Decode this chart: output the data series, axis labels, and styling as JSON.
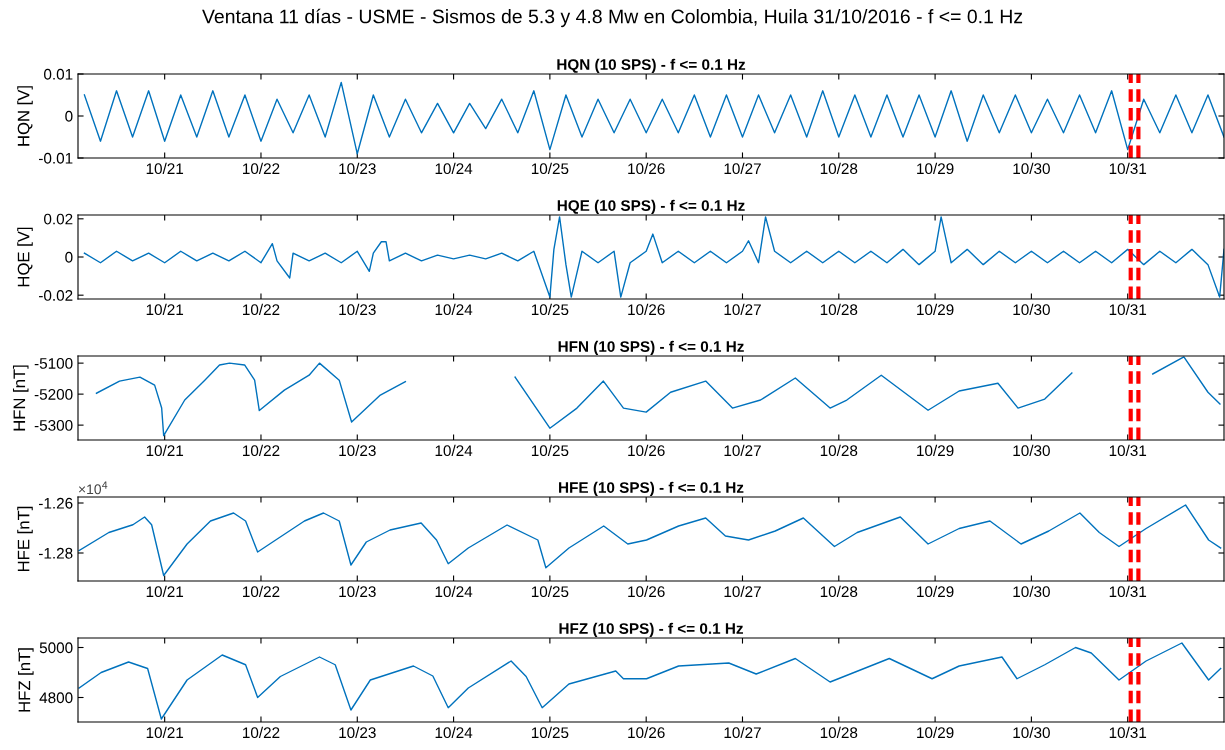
{
  "chart_data": [
    {
      "type": "line",
      "title": "HQN (10 SPS) - f <= 0.1 Hz",
      "ylabel": "HQN [V]",
      "annotations": [
        "Ventana 11 días - USME - Sismos de 5.3 y 4.8 Mw en Colombia, Huila 31/10/2016 - f <= 0.1 Hz"
      ],
      "xlim": [
        "2016-10-20T02:24",
        "2016-11-01T00:00"
      ],
      "ylim": [
        -0.01,
        0.01
      ],
      "yticks": [
        0.01,
        0,
        -0.01
      ],
      "xticks": [
        {
          "value": "2016-10-21",
          "label": "10/21"
        },
        {
          "value": "2016-10-22",
          "label": "10/22"
        },
        {
          "value": "2016-10-23",
          "label": "10/23"
        },
        {
          "value": "2016-10-24",
          "label": "10/24"
        },
        {
          "value": "2016-10-25",
          "label": "10/25"
        },
        {
          "value": "2016-10-26",
          "label": "10/26"
        },
        {
          "value": "2016-10-27",
          "label": "10/27"
        },
        {
          "value": "2016-10-28",
          "label": "10/28"
        },
        {
          "value": "2016-10-29",
          "label": "10/29"
        },
        {
          "value": "2016-10-30",
          "label": "10/30"
        },
        {
          "value": "2016-10-31",
          "label": "10/31"
        }
      ],
      "ref_lines": [
        {
          "axis": "x",
          "value": "2016-10-31T00:45",
          "color": "#ff0000",
          "line_style": "dashed"
        },
        {
          "axis": "x",
          "value": "2016-10-31T02:40",
          "color": "#ff0000",
          "line_style": "dashed"
        }
      ],
      "grid": false,
      "legend": false,
      "series": [
        {
          "color": "#0072bd",
          "x": [
            "2016-10-20T04:00",
            "2016-10-20T08:00",
            "2016-10-20T12:00",
            "2016-10-20T16:00",
            "2016-10-20T20:00",
            "2016-10-21T00:00",
            "2016-10-21T04:00",
            "2016-10-21T08:00",
            "2016-10-21T12:00",
            "2016-10-21T16:00",
            "2016-10-21T20:00",
            "2016-10-22T00:00",
            "2016-10-22T04:00",
            "2016-10-22T08:00",
            "2016-10-22T12:00",
            "2016-10-22T16:00",
            "2016-10-22T20:00",
            "2016-10-23T00:00",
            "2016-10-23T04:00",
            "2016-10-23T08:00",
            "2016-10-23T12:00",
            "2016-10-23T16:00",
            "2016-10-23T20:00",
            "2016-10-24T00:00",
            "2016-10-24T04:00",
            "2016-10-24T08:00",
            "2016-10-24T12:00",
            "2016-10-24T16:00",
            "2016-10-24T20:00",
            "2016-10-25T00:00",
            "2016-10-25T04:00",
            "2016-10-25T08:00",
            "2016-10-25T12:00",
            "2016-10-25T16:00",
            "2016-10-25T20:00",
            "2016-10-26T00:00",
            "2016-10-26T04:00",
            "2016-10-26T08:00",
            "2016-10-26T12:00",
            "2016-10-26T16:00",
            "2016-10-26T20:00",
            "2016-10-27T00:00",
            "2016-10-27T04:00",
            "2016-10-27T08:00",
            "2016-10-27T12:00",
            "2016-10-27T16:00",
            "2016-10-27T20:00",
            "2016-10-28T00:00",
            "2016-10-28T04:00",
            "2016-10-28T08:00",
            "2016-10-28T12:00",
            "2016-10-28T16:00",
            "2016-10-28T20:00",
            "2016-10-29T00:00",
            "2016-10-29T04:00",
            "2016-10-29T08:00",
            "2016-10-29T12:00",
            "2016-10-29T16:00",
            "2016-10-29T20:00",
            "2016-10-30T00:00",
            "2016-10-30T04:00",
            "2016-10-30T08:00",
            "2016-10-30T12:00",
            "2016-10-30T16:00",
            "2016-10-30T20:00",
            "2016-10-31T00:00",
            "2016-10-31T04:00",
            "2016-10-31T08:00",
            "2016-10-31T12:00",
            "2016-10-31T16:00",
            "2016-10-31T20:00",
            "2016-11-01T00:00"
          ],
          "values": [
            0.005,
            -0.006,
            0.006,
            -0.005,
            0.006,
            -0.006,
            0.005,
            -0.005,
            0.006,
            -0.005,
            0.005,
            -0.006,
            0.004,
            -0.004,
            0.005,
            -0.005,
            0.008,
            -0.009,
            0.005,
            -0.005,
            0.004,
            -0.004,
            0.003,
            -0.004,
            0.003,
            -0.003,
            0.004,
            -0.004,
            0.006,
            -0.008,
            0.005,
            -0.005,
            0.004,
            -0.004,
            0.004,
            -0.004,
            0.004,
            -0.004,
            0.005,
            -0.005,
            0.005,
            -0.005,
            0.005,
            -0.004,
            0.005,
            -0.005,
            0.006,
            -0.005,
            0.005,
            -0.005,
            0.005,
            -0.005,
            0.005,
            -0.005,
            0.006,
            -0.006,
            0.005,
            -0.004,
            0.005,
            -0.004,
            0.004,
            -0.004,
            0.005,
            -0.004,
            0.006,
            -0.008,
            0.004,
            -0.004,
            0.005,
            -0.004,
            0.005,
            -0.005
          ]
        }
      ]
    },
    {
      "type": "line",
      "title": "HQE (10 SPS) - f <= 0.1 Hz",
      "ylabel": "HQE [V]",
      "xlim": [
        "2016-10-20T02:24",
        "2016-11-01T00:00"
      ],
      "ylim": [
        -0.022,
        0.022
      ],
      "yticks": [
        0.02,
        0,
        -0.02
      ],
      "xticks": [
        {
          "value": "2016-10-21",
          "label": "10/21"
        },
        {
          "value": "2016-10-22",
          "label": "10/22"
        },
        {
          "value": "2016-10-23",
          "label": "10/23"
        },
        {
          "value": "2016-10-24",
          "label": "10/24"
        },
        {
          "value": "2016-10-25",
          "label": "10/25"
        },
        {
          "value": "2016-10-26",
          "label": "10/26"
        },
        {
          "value": "2016-10-27",
          "label": "10/27"
        },
        {
          "value": "2016-10-28",
          "label": "10/28"
        },
        {
          "value": "2016-10-29",
          "label": "10/29"
        },
        {
          "value": "2016-10-30",
          "label": "10/30"
        },
        {
          "value": "2016-10-31",
          "label": "10/31"
        }
      ],
      "ref_lines": [
        {
          "axis": "x",
          "value": "2016-10-31T00:45",
          "color": "#ff0000",
          "line_style": "dashed"
        },
        {
          "axis": "x",
          "value": "2016-10-31T02:40",
          "color": "#ff0000",
          "line_style": "dashed"
        }
      ],
      "grid": false,
      "legend": false,
      "series": [
        {
          "color": "#0072bd",
          "x": [
            "2016-10-20T04:00",
            "2016-10-20T08:00",
            "2016-10-20T12:00",
            "2016-10-20T16:00",
            "2016-10-20T20:00",
            "2016-10-21T00:00",
            "2016-10-21T04:00",
            "2016-10-21T08:00",
            "2016-10-21T12:00",
            "2016-10-21T16:00",
            "2016-10-21T20:00",
            "2016-10-22T00:00",
            "2016-10-22T02:50",
            "2016-10-22T04:00",
            "2016-10-22T07:10",
            "2016-10-22T08:00",
            "2016-10-22T12:00",
            "2016-10-22T16:00",
            "2016-10-22T20:00",
            "2016-10-23T00:00",
            "2016-10-23T03:00",
            "2016-10-23T04:00",
            "2016-10-23T06:00",
            "2016-10-23T07:10",
            "2016-10-23T08:00",
            "2016-10-23T12:00",
            "2016-10-23T16:00",
            "2016-10-23T20:00",
            "2016-10-24T00:00",
            "2016-10-24T04:00",
            "2016-10-24T08:00",
            "2016-10-24T12:00",
            "2016-10-24T16:00",
            "2016-10-24T20:00",
            "2016-10-25T00:00",
            "2016-10-25T01:00",
            "2016-10-25T02:25",
            "2016-10-25T04:00",
            "2016-10-25T05:20",
            "2016-10-25T08:00",
            "2016-10-25T12:00",
            "2016-10-25T16:00",
            "2016-10-25T17:40",
            "2016-10-25T20:00",
            "2016-10-26T00:00",
            "2016-10-26T01:40",
            "2016-10-26T04:00",
            "2016-10-26T08:00",
            "2016-10-26T12:00",
            "2016-10-26T16:00",
            "2016-10-26T20:00",
            "2016-10-27T00:00",
            "2016-10-27T01:30",
            "2016-10-27T04:00",
            "2016-10-27T05:45",
            "2016-10-27T08:00",
            "2016-10-27T12:00",
            "2016-10-27T16:00",
            "2016-10-27T20:00",
            "2016-10-28T00:00",
            "2016-10-28T04:00",
            "2016-10-28T08:00",
            "2016-10-28T12:00",
            "2016-10-28T16:00",
            "2016-10-28T20:00",
            "2016-10-29T00:00",
            "2016-10-29T01:30",
            "2016-10-29T04:00",
            "2016-10-29T08:00",
            "2016-10-29T12:00",
            "2016-10-29T16:00",
            "2016-10-29T20:00",
            "2016-10-30T00:00",
            "2016-10-30T04:00",
            "2016-10-30T08:00",
            "2016-10-30T12:00",
            "2016-10-30T16:00",
            "2016-10-30T20:00",
            "2016-10-31T00:00",
            "2016-10-31T04:00",
            "2016-10-31T08:00",
            "2016-10-31T12:00",
            "2016-10-31T16:00",
            "2016-10-31T20:00",
            "2016-10-31T22:55",
            "2016-11-01T00:00"
          ],
          "values": [
            0.002,
            -0.003,
            0.003,
            -0.002,
            0.002,
            -0.003,
            0.003,
            -0.002,
            0.002,
            -0.002,
            0.003,
            -0.003,
            0.007,
            -0.002,
            -0.011,
            0.002,
            -0.002,
            0.002,
            -0.003,
            0.003,
            -0.0075,
            0.002,
            0.008,
            0.008,
            -0.002,
            0.002,
            -0.002,
            0.001,
            -0.001,
            0.001,
            -0.001,
            0.002,
            -0.002,
            0.003,
            -0.021,
            0.004,
            0.021,
            -0.004,
            -0.021,
            0.003,
            -0.003,
            0.003,
            -0.021,
            -0.003,
            0.003,
            0.012,
            -0.003,
            0.003,
            -0.003,
            0.003,
            -0.003,
            0.003,
            0.0085,
            -0.003,
            0.021,
            0.003,
            -0.003,
            0.003,
            -0.003,
            0.003,
            -0.003,
            0.003,
            -0.003,
            0.004,
            -0.004,
            0.003,
            0.021,
            -0.003,
            0.004,
            -0.004,
            0.003,
            -0.003,
            0.003,
            -0.003,
            0.003,
            -0.003,
            0.003,
            -0.003,
            0.004,
            -0.004,
            0.003,
            -0.003,
            0.004,
            -0.004,
            -0.021,
            0.004
          ]
        }
      ]
    },
    {
      "type": "line",
      "title": "HFN (10 SPS) - f <= 0.1 Hz",
      "ylabel": "HFN [nT]",
      "xlim": [
        "2016-10-20T02:24",
        "2016-11-01T00:00"
      ],
      "ylim": [
        -5348,
        -5077
      ],
      "yticks": [
        -5100,
        -5200,
        -5300
      ],
      "xticks": [
        {
          "value": "2016-10-21",
          "label": "10/21"
        },
        {
          "value": "2016-10-22",
          "label": "10/22"
        },
        {
          "value": "2016-10-23",
          "label": "10/23"
        },
        {
          "value": "2016-10-24",
          "label": "10/24"
        },
        {
          "value": "2016-10-25",
          "label": "10/25"
        },
        {
          "value": "2016-10-26",
          "label": "10/26"
        },
        {
          "value": "2016-10-27",
          "label": "10/27"
        },
        {
          "value": "2016-10-28",
          "label": "10/28"
        },
        {
          "value": "2016-10-29",
          "label": "10/29"
        },
        {
          "value": "2016-10-30",
          "label": "10/30"
        },
        {
          "value": "2016-10-31",
          "label": "10/31"
        }
      ],
      "ref_lines": [
        {
          "axis": "x",
          "value": "2016-10-31T00:45",
          "color": "#ff0000",
          "line_style": "dashed"
        },
        {
          "axis": "x",
          "value": "2016-10-31T02:40",
          "color": "#ff0000",
          "line_style": "dashed"
        }
      ],
      "grid": false,
      "legend": false,
      "series": [
        {
          "color": "#0072bd",
          "x": [
            "2016-10-20T07:00",
            "2016-10-20T12:45",
            "2016-10-20T17:50",
            "2016-10-20T21:30",
            "2016-10-20T23:15",
            "2016-10-20T23:45",
            "2016-10-21T05:00",
            "2016-10-21T10:00",
            "2016-10-21T13:40",
            "2016-10-21T16:10",
            "2016-10-21T19:55",
            "2016-10-21T22:25",
            "2016-10-21T23:35",
            "2016-10-22T05:50",
            "2016-10-22T12:00",
            "2016-10-22T14:35",
            "2016-10-22T19:30",
            "2016-10-22T22:35",
            "2016-10-23T05:45",
            "2016-10-23T12:00",
            "2016-10-24T02:00",
            "2016-10-24T15:20",
            "2016-10-25T00:00",
            "2016-10-25T06:45",
            "2016-10-25T13:20",
            "2016-10-25T18:20",
            "2016-10-26T00:00",
            "2016-10-26T06:05",
            "2016-10-26T14:50",
            "2016-10-26T21:30",
            "2016-10-27T04:30",
            "2016-10-27T13:10",
            "2016-10-27T21:50",
            "2016-10-28T02:00",
            "2016-10-28T10:35",
            "2016-10-28T22:15",
            "2016-10-29T06:00",
            "2016-10-29T15:40",
            "2016-10-29T20:40",
            "2016-10-30T03:20",
            "2016-10-30T10:05",
            "2016-10-30T20:00",
            "2016-10-31T06:15",
            "2016-10-31T14:00",
            "2016-10-31T20:00",
            "2016-10-31T23:00"
          ],
          "values": [
            -5197,
            -5158,
            -5145,
            -5171,
            -5245,
            -5334,
            -5219,
            -5155,
            -5106,
            -5100,
            -5106,
            -5155,
            -5253,
            -5187,
            -5139,
            -5100,
            -5155,
            -5290,
            -5203,
            -5160,
            null,
            -5145,
            -5310,
            -5245,
            -5158,
            -5245,
            -5258,
            -5194,
            -5158,
            -5245,
            -5219,
            -5148,
            -5245,
            -5219,
            -5139,
            -5252,
            -5190,
            -5165,
            -5245,
            -5216,
            -5132,
            null,
            -5135,
            -5080,
            -5194,
            -5232
          ]
        }
      ]
    },
    {
      "type": "line",
      "title": "HFE (10 SPS) - f <= 0.1 Hz",
      "ylabel": "HFE [nT]",
      "annotations": [
        "×10$^{4}$"
      ],
      "xlim": [
        "2016-10-20T02:24",
        "2016-11-01T00:00"
      ],
      "ylim": [
        -1.2912,
        -1.2576
      ],
      "yticks": [
        -1.26,
        -1.28
      ],
      "xticks": [
        {
          "value": "2016-10-21",
          "label": "10/21"
        },
        {
          "value": "2016-10-22",
          "label": "10/22"
        },
        {
          "value": "2016-10-23",
          "label": "10/23"
        },
        {
          "value": "2016-10-24",
          "label": "10/24"
        },
        {
          "value": "2016-10-25",
          "label": "10/25"
        },
        {
          "value": "2016-10-26",
          "label": "10/26"
        },
        {
          "value": "2016-10-27",
          "label": "10/27"
        },
        {
          "value": "2016-10-28",
          "label": "10/28"
        },
        {
          "value": "2016-10-29",
          "label": "10/29"
        },
        {
          "value": "2016-10-30",
          "label": "10/30"
        },
        {
          "value": "2016-10-31",
          "label": "10/31"
        }
      ],
      "ref_lines": [
        {
          "axis": "x",
          "value": "2016-10-31T00:45",
          "color": "#ff0000",
          "line_style": "dashed"
        },
        {
          "axis": "x",
          "value": "2016-10-31T02:40",
          "color": "#ff0000",
          "line_style": "dashed"
        }
      ],
      "grid": false,
      "legend": false,
      "series": [
        {
          "color": "#0072bd",
          "x": [
            "2016-10-20T02:40",
            "2016-10-20T10:05",
            "2016-10-20T16:05",
            "2016-10-20T19:00",
            "2016-10-20T20:45",
            "2016-10-20T23:45",
            "2016-10-21T05:35",
            "2016-10-21T11:25",
            "2016-10-21T17:10",
            "2016-10-21T20:10",
            "2016-10-21T23:10",
            "2016-10-22T02:55",
            "2016-10-22T10:50",
            "2016-10-22T15:35",
            "2016-10-22T19:30",
            "2016-10-22T22:25",
            "2016-10-23T02:15",
            "2016-10-23T08:10",
            "2016-10-23T15:55",
            "2016-10-23T19:45",
            "2016-10-23T22:40",
            "2016-10-24T03:40",
            "2016-10-24T13:20",
            "2016-10-24T21:00",
            "2016-10-24T23:00",
            "2016-10-25T04:45",
            "2016-10-25T13:25",
            "2016-10-25T19:25",
            "2016-10-26T00:05",
            "2016-10-26T08:05",
            "2016-10-26T14:50",
            "2016-10-26T19:45",
            "2016-10-27T01:30",
            "2016-10-27T08:10",
            "2016-10-27T15:10",
            "2016-10-27T22:55",
            "2016-10-28T04:35",
            "2016-10-28T15:20",
            "2016-10-28T22:15",
            "2016-10-29T06:00",
            "2016-10-29T13:40",
            "2016-10-29T21:25",
            "2016-10-30T04:20",
            "2016-10-30T12:05",
            "2016-10-30T16:55",
            "2016-10-30T21:50",
            "2016-10-31T04:35",
            "2016-10-31T14:25",
            "2016-10-31T20:10",
            "2016-10-31T23:10"
          ],
          "values": [
            -1.279,
            -1.2718,
            -1.2687,
            -1.2656,
            -1.2687,
            -1.289,
            -1.2764,
            -1.2672,
            -1.264,
            -1.2672,
            -1.2796,
            -1.2756,
            -1.2672,
            -1.264,
            -1.2672,
            -1.2848,
            -1.2756,
            -1.2708,
            -1.268,
            -1.2748,
            -1.2843,
            -1.278,
            -1.2688,
            -1.2748,
            -1.2859,
            -1.278,
            -1.2692,
            -1.2764,
            -1.2748,
            -1.2692,
            -1.266,
            -1.2732,
            -1.2748,
            -1.2712,
            -1.266,
            -1.2774,
            -1.2718,
            -1.2656,
            -1.2764,
            -1.2702,
            -1.2672,
            -1.2764,
            -1.2712,
            -1.264,
            -1.2718,
            -1.2774,
            -1.2702,
            -1.2608,
            -1.2748,
            -1.278
          ]
        }
      ]
    },
    {
      "type": "line",
      "title": "HFZ (10 SPS) - f <= 0.1 Hz",
      "ylabel": "HFZ [nT]",
      "xlim": [
        "2016-10-20T02:24",
        "2016-11-01T00:00"
      ],
      "ylim": [
        4702,
        5038
      ],
      "yticks": [
        5000,
        4800
      ],
      "xticks": [
        {
          "value": "2016-10-21",
          "label": "10/21"
        },
        {
          "value": "2016-10-22",
          "label": "10/22"
        },
        {
          "value": "2016-10-23",
          "label": "10/23"
        },
        {
          "value": "2016-10-24",
          "label": "10/24"
        },
        {
          "value": "2016-10-25",
          "label": "10/25"
        },
        {
          "value": "2016-10-26",
          "label": "10/26"
        },
        {
          "value": "2016-10-27",
          "label": "10/27"
        },
        {
          "value": "2016-10-28",
          "label": "10/28"
        },
        {
          "value": "2016-10-29",
          "label": "10/29"
        },
        {
          "value": "2016-10-30",
          "label": "10/30"
        },
        {
          "value": "2016-10-31",
          "label": "10/31"
        }
      ],
      "ref_lines": [
        {
          "axis": "x",
          "value": "2016-10-31T00:45",
          "color": "#ff0000",
          "line_style": "dashed"
        },
        {
          "axis": "x",
          "value": "2016-10-31T02:40",
          "color": "#ff0000",
          "line_style": "dashed"
        }
      ],
      "grid": false,
      "legend": false,
      "series": [
        {
          "color": "#0072bd",
          "x": [
            "2016-10-20T02:40",
            "2016-10-20T08:10",
            "2016-10-20T15:00",
            "2016-10-20T19:45",
            "2016-10-20T23:10",
            "2016-10-21T05:35",
            "2016-10-21T14:20",
            "2016-10-21T20:10",
            "2016-10-21T23:10",
            "2016-10-22T04:50",
            "2016-10-22T14:35",
            "2016-10-22T18:30",
            "2016-10-22T22:25",
            "2016-10-23T03:15",
            "2016-10-23T14:00",
            "2016-10-23T18:50",
            "2016-10-23T22:40",
            "2016-10-24T03:40",
            "2016-10-24T14:20",
            "2016-10-24T18:05",
            "2016-10-24T22:05",
            "2016-10-25T04:45",
            "2016-10-25T16:25",
            "2016-10-25T18:20",
            "2016-10-26T00:05",
            "2016-10-26T08:05",
            "2016-10-26T20:35",
            "2016-10-27T03:25",
            "2016-10-27T13:10",
            "2016-10-27T21:50",
            "2016-10-28T12:35",
            "2016-10-28T23:15",
            "2016-10-29T06:00",
            "2016-10-29T16:40",
            "2016-10-29T20:25",
            "2016-10-30T03:20",
            "2016-10-30T11:00",
            "2016-10-30T14:55",
            "2016-10-30T21:50",
            "2016-10-31T04:35",
            "2016-10-31T13:30",
            "2016-10-31T20:10",
            "2016-10-31T23:10"
          ],
          "values": [
            4838,
            4900,
            4942,
            4916,
            4714,
            4870,
            4970,
            4931,
            4800,
            4884,
            4962,
            4931,
            4750,
            4870,
            4926,
            4886,
            4759,
            4838,
            4946,
            4884,
            4759,
            4854,
            4906,
            4875,
            4875,
            4926,
            4938,
            4894,
            4956,
            4862,
            4956,
            4875,
            4926,
            4962,
            4875,
            4931,
            5000,
            4978,
            4870,
            4946,
            5018,
            4870,
            4916
          ]
        }
      ]
    }
  ]
}
